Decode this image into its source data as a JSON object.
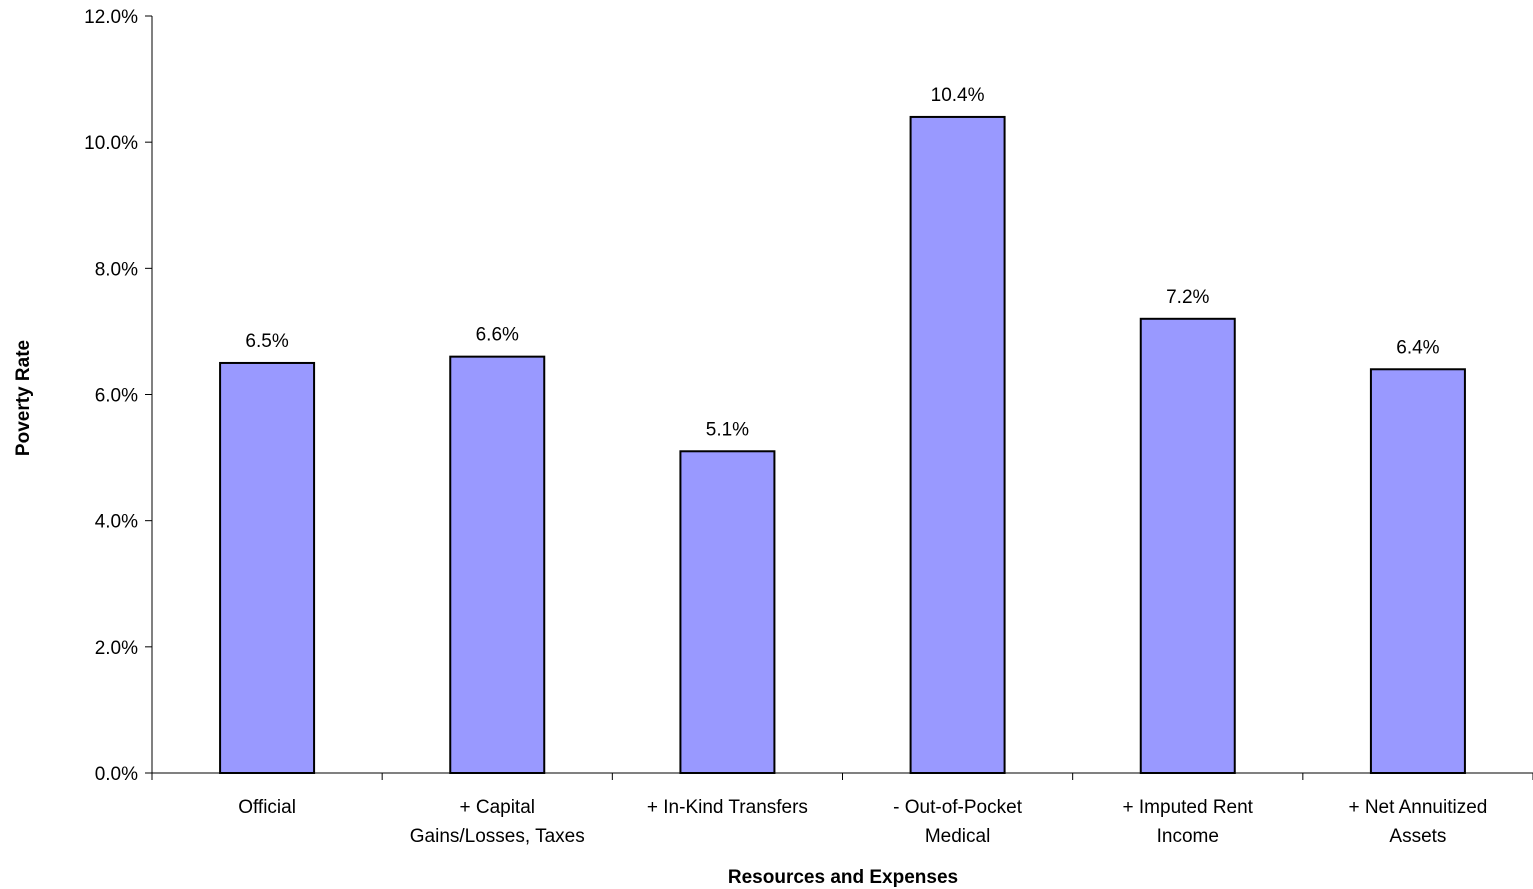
{
  "chart_data": {
    "type": "bar",
    "categories": [
      [
        "Official"
      ],
      [
        "+ Capital",
        "Gains/Losses, Taxes"
      ],
      [
        "+ In-Kind Transfers"
      ],
      [
        "- Out-of-Pocket",
        "Medical"
      ],
      [
        "+ Imputed Rent",
        "Income"
      ],
      [
        "+ Net Annuitized",
        "Assets"
      ]
    ],
    "values": [
      6.5,
      6.6,
      5.1,
      10.4,
      7.2,
      6.4
    ],
    "data_labels": [
      "6.5%",
      "6.6%",
      "5.1%",
      "10.4%",
      "7.2%",
      "6.4%"
    ],
    "xlabel": "Resources and Expenses",
    "ylabel": "Poverty Rate",
    "ylim": [
      0,
      12
    ],
    "yticks": [
      0,
      2,
      4,
      6,
      8,
      10,
      12
    ],
    "ytick_labels": [
      "0.0%",
      "2.0%",
      "4.0%",
      "6.0%",
      "8.0%",
      "10.0%",
      "12.0%"
    ],
    "grid": false,
    "bar_color": "#9999FF",
    "bar_edge_color": "#000000"
  }
}
